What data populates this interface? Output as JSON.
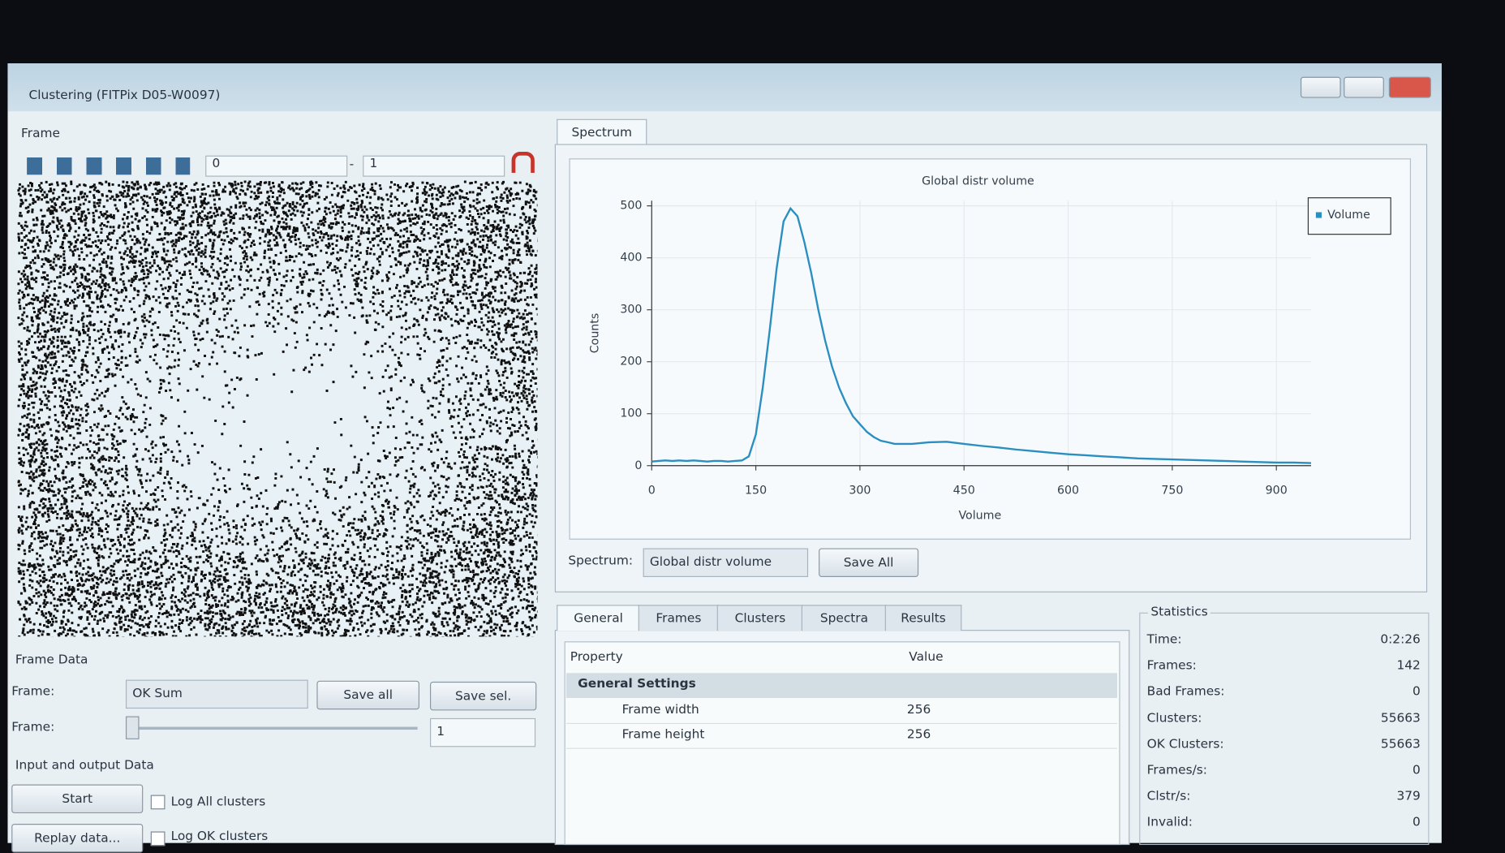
{
  "window": {
    "title": "Clustering (FITPix D05-W0097)"
  },
  "frame_panel": {
    "title": "Frame",
    "range_from": "0",
    "range_separator": "-",
    "range_to": "1"
  },
  "frame_data": {
    "title": "Frame Data",
    "frame_label": "Frame:",
    "frame_select": "OK Sum",
    "save_all": "Save all",
    "save_sel": "Save sel.",
    "frame_label_2": "Frame:",
    "frame_spin": "1"
  },
  "io_data": {
    "title": "Input and output Data",
    "start": "Start",
    "log_all": "Log All clusters",
    "replay": "Replay data...",
    "log_ok": "Log OK clusters"
  },
  "spectrum_panel": {
    "tab": "Spectrum",
    "select_label": "Spectrum:",
    "select_value": "Global distr volume",
    "save_all": "Save All"
  },
  "chart_data": {
    "type": "line",
    "title": "Global distr volume",
    "xlabel": "Volume",
    "ylabel": "Counts",
    "x": [
      0,
      10,
      20,
      30,
      40,
      50,
      60,
      70,
      80,
      90,
      100,
      110,
      120,
      130,
      140,
      150,
      160,
      170,
      180,
      190,
      200,
      210,
      220,
      230,
      240,
      250,
      260,
      270,
      280,
      290,
      300,
      310,
      320,
      330,
      340,
      350,
      375,
      400,
      425,
      450,
      475,
      500,
      525,
      550,
      575,
      600,
      625,
      650,
      675,
      700,
      725,
      750,
      775,
      800,
      825,
      850,
      875,
      900,
      925,
      950
    ],
    "series": [
      {
        "name": "Volume",
        "color": "#2a8fc0",
        "values": [
          8,
          9,
          10,
          9,
          10,
          9,
          10,
          9,
          8,
          9,
          9,
          8,
          9,
          10,
          18,
          60,
          150,
          260,
          380,
          470,
          495,
          480,
          430,
          370,
          300,
          240,
          190,
          150,
          120,
          95,
          80,
          65,
          55,
          48,
          45,
          42,
          42,
          45,
          46,
          42,
          38,
          35,
          31,
          28,
          25,
          22,
          20,
          18,
          16,
          14,
          13,
          12,
          11,
          10,
          9,
          8,
          7,
          6,
          6,
          5
        ]
      }
    ],
    "xlim": [
      0,
      950
    ],
    "ylim": [
      0,
      510
    ],
    "xticks": [
      0,
      150,
      300,
      450,
      600,
      750,
      900
    ],
    "yticks": [
      0,
      100,
      200,
      300,
      400,
      500
    ],
    "grid": true,
    "legend": "upper right"
  },
  "property_panel": {
    "tabs": [
      "General",
      "Frames",
      "Clusters",
      "Spectra",
      "Results"
    ],
    "columns": [
      "Property",
      "Value"
    ],
    "group": "General Settings",
    "rows": [
      [
        "Frame width",
        "256"
      ],
      [
        "Frame height",
        "256"
      ]
    ]
  },
  "statistics": {
    "title": "Statistics",
    "rows": [
      [
        "Time:",
        "0:2:26"
      ],
      [
        "Frames:",
        "142"
      ],
      [
        "Bad Frames:",
        "0"
      ],
      [
        "Clusters:",
        "55663"
      ],
      [
        "OK Clusters:",
        "55663"
      ],
      [
        "Frames/s:",
        "0"
      ],
      [
        "Clstr/s:",
        "379"
      ],
      [
        "Invalid:",
        "0"
      ]
    ]
  }
}
